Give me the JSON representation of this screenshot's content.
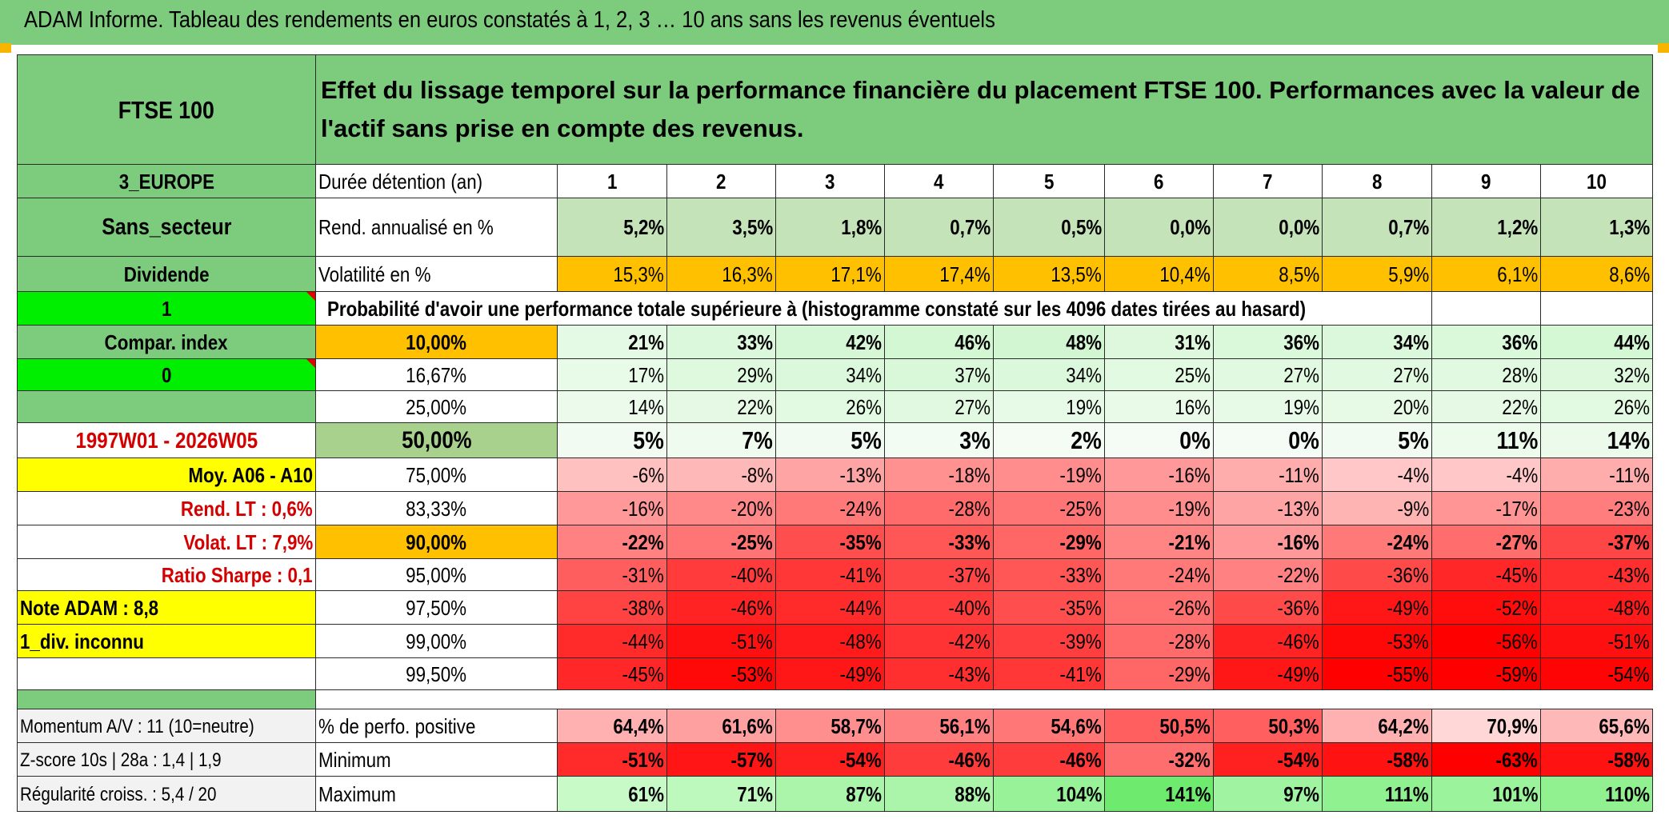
{
  "title": "ADAM Informe. Tableau des rendements en euros constatés à 1, 2, 3 … 10 ans sans les revenus éventuels",
  "colors": {
    "header_green": "#7dcb7d",
    "light_green": "#c5e3b8",
    "bright_green": "#00ee00",
    "orange": "#ffc000",
    "yellow": "#ffff00",
    "red_text": "#d40000"
  },
  "header": {
    "asset": "FTSE 100",
    "description": "Effet du lissage temporel sur la performance financière du placement FTSE 100. Performances avec la valeur de l'actif sans prise en compte des revenus."
  },
  "side": {
    "region": "3_EUROPE",
    "sector": "Sans_secteur",
    "dividend": "Dividende",
    "flag1": "1",
    "compar_index": "Compar. index",
    "flag2": "0",
    "period": "1997W01 - 2026W05",
    "moy": "Moy. A06 - A10",
    "rend_lt": "Rend. LT :   0,6%",
    "volat_lt": "Volat. LT :   7,9%",
    "sharpe": "Ratio Sharpe :   0,1",
    "note": "Note ADAM : 8,8",
    "div_unknown": "1_div. inconnu"
  },
  "labels": {
    "duration": "Durée détention (an)",
    "rendement": "Rend. annualisé en %",
    "volatility": "Volatilité en %",
    "probability": "Probabilité d'avoir une performance totale supérieure à (histogramme constaté sur les 4096 dates tirées au hasard)"
  },
  "years": [
    "1",
    "2",
    "3",
    "4",
    "5",
    "6",
    "7",
    "8",
    "9",
    "10"
  ],
  "rendements": [
    "5,2%",
    "3,5%",
    "1,8%",
    "0,7%",
    "0,5%",
    "0,0%",
    "0,0%",
    "0,7%",
    "1,2%",
    "1,3%"
  ],
  "volatilities": [
    "15,3%",
    "16,3%",
    "17,1%",
    "17,4%",
    "13,5%",
    "10,4%",
    "8,5%",
    "5,9%",
    "6,1%",
    "8,6%"
  ],
  "quantiles": [
    {
      "label": "10,00%",
      "values": [
        "21%",
        "33%",
        "42%",
        "46%",
        "48%",
        "31%",
        "36%",
        "34%",
        "36%",
        "44%"
      ]
    },
    {
      "label": "16,67%",
      "values": [
        "17%",
        "29%",
        "34%",
        "37%",
        "34%",
        "25%",
        "27%",
        "27%",
        "28%",
        "32%"
      ]
    },
    {
      "label": "25,00%",
      "values": [
        "14%",
        "22%",
        "26%",
        "27%",
        "19%",
        "16%",
        "19%",
        "20%",
        "22%",
        "26%"
      ]
    },
    {
      "label": "50,00%",
      "values": [
        "5%",
        "7%",
        "5%",
        "3%",
        "2%",
        "0%",
        "0%",
        "5%",
        "11%",
        "14%"
      ]
    },
    {
      "label": "75,00%",
      "values": [
        "-6%",
        "-8%",
        "-13%",
        "-18%",
        "-19%",
        "-16%",
        "-11%",
        "-4%",
        "-4%",
        "-11%"
      ]
    },
    {
      "label": "83,33%",
      "values": [
        "-16%",
        "-20%",
        "-24%",
        "-28%",
        "-25%",
        "-19%",
        "-13%",
        "-9%",
        "-17%",
        "-23%"
      ]
    },
    {
      "label": "90,00%",
      "values": [
        "-22%",
        "-25%",
        "-35%",
        "-33%",
        "-29%",
        "-21%",
        "-16%",
        "-24%",
        "-27%",
        "-37%"
      ]
    },
    {
      "label": "95,00%",
      "values": [
        "-31%",
        "-40%",
        "-41%",
        "-37%",
        "-33%",
        "-24%",
        "-22%",
        "-36%",
        "-45%",
        "-43%"
      ]
    },
    {
      "label": "97,50%",
      "values": [
        "-38%",
        "-46%",
        "-44%",
        "-40%",
        "-35%",
        "-26%",
        "-36%",
        "-49%",
        "-52%",
        "-48%"
      ]
    },
    {
      "label": "99,00%",
      "values": [
        "-44%",
        "-51%",
        "-48%",
        "-42%",
        "-39%",
        "-28%",
        "-46%",
        "-53%",
        "-56%",
        "-51%"
      ]
    },
    {
      "label": "99,50%",
      "values": [
        "-45%",
        "-53%",
        "-49%",
        "-43%",
        "-41%",
        "-29%",
        "-49%",
        "-55%",
        "-59%",
        "-54%"
      ]
    }
  ],
  "bottom": [
    {
      "side": "Momentum A/V : 11 (10=neutre)",
      "label": "% de perfo. positive",
      "values": [
        "64,4%",
        "61,6%",
        "58,7%",
        "56,1%",
        "54,6%",
        "50,5%",
        "50,3%",
        "64,2%",
        "70,9%",
        "65,6%"
      ]
    },
    {
      "side": "Z-score 10s | 28a : 1,4 | 1,9",
      "label": "Minimum",
      "values": [
        "-51%",
        "-57%",
        "-54%",
        "-46%",
        "-46%",
        "-32%",
        "-54%",
        "-58%",
        "-63%",
        "-58%"
      ]
    },
    {
      "side": "Régularité croiss. : 5,4 / 20",
      "label": "Maximum",
      "values": [
        "61%",
        "71%",
        "87%",
        "88%",
        "104%",
        "141%",
        "97%",
        "111%",
        "101%",
        "110%"
      ]
    }
  ]
}
